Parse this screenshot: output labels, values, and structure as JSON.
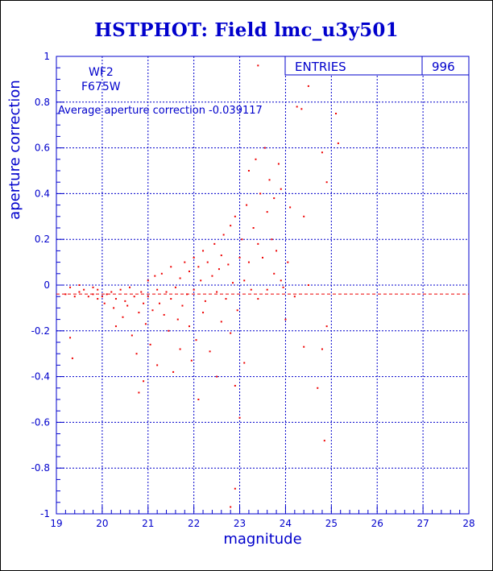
{
  "title": "HSTPHOT: Field lmc_u3y501",
  "chart_data": {
    "type": "scatter",
    "title": "HSTPHOT: Field lmc_u3y501",
    "xlabel": "magnitude",
    "ylabel": "aperture correction",
    "xlim": [
      19,
      28
    ],
    "ylim": [
      -1,
      1
    ],
    "x_ticks": [
      "19",
      "20",
      "21",
      "22",
      "23",
      "24",
      "25",
      "26",
      "27",
      "28"
    ],
    "y_ticks": [
      "-1",
      "-0.8",
      "-0.6",
      "-0.4",
      "-0.2",
      "0",
      "0.2",
      "0.4",
      "0.6",
      "0.8",
      "1"
    ],
    "grid": true,
    "annotations": {
      "chip": "WF2",
      "filter": "F675W",
      "average_text": "Average aperture correction -0.039117"
    },
    "stats_box": {
      "label": "ENTRIES",
      "value": "996"
    },
    "average_line": -0.039117,
    "colors": {
      "axes": "#0000cc",
      "points": "#ee0000",
      "average_line": "#ee0000"
    },
    "points": [
      [
        19.2,
        -0.04
      ],
      [
        19.3,
        -0.01
      ],
      [
        19.4,
        -0.05
      ],
      [
        19.5,
        -0.03
      ],
      [
        19.6,
        -0.02
      ],
      [
        19.7,
        -0.05
      ],
      [
        19.8,
        -0.04
      ],
      [
        19.9,
        -0.06
      ],
      [
        19.3,
        -0.23
      ],
      [
        19.35,
        -0.32
      ],
      [
        19.5,
        0.0
      ],
      [
        19.8,
        -0.01
      ],
      [
        19.9,
        -0.02
      ],
      [
        20.0,
        -0.05
      ],
      [
        20.05,
        -0.08
      ],
      [
        20.1,
        -0.04
      ],
      [
        20.2,
        -0.03
      ],
      [
        20.25,
        -0.1
      ],
      [
        20.3,
        -0.06
      ],
      [
        20.3,
        -0.18
      ],
      [
        20.4,
        -0.02
      ],
      [
        20.45,
        -0.14
      ],
      [
        20.5,
        -0.07
      ],
      [
        20.55,
        -0.09
      ],
      [
        20.6,
        -0.01
      ],
      [
        20.65,
        -0.22
      ],
      [
        20.7,
        -0.05
      ],
      [
        20.75,
        -0.3
      ],
      [
        20.8,
        -0.12
      ],
      [
        20.8,
        -0.47
      ],
      [
        20.85,
        -0.03
      ],
      [
        20.9,
        -0.08
      ],
      [
        20.9,
        -0.42
      ],
      [
        20.95,
        -0.17
      ],
      [
        21.0,
        0.02
      ],
      [
        21.0,
        -0.05
      ],
      [
        21.05,
        -0.26
      ],
      [
        21.1,
        -0.11
      ],
      [
        21.15,
        0.04
      ],
      [
        21.2,
        -0.02
      ],
      [
        21.2,
        -0.35
      ],
      [
        21.25,
        -0.08
      ],
      [
        21.3,
        0.05
      ],
      [
        21.35,
        -0.13
      ],
      [
        21.4,
        -0.03
      ],
      [
        21.45,
        -0.2
      ],
      [
        21.5,
        0.08
      ],
      [
        21.5,
        -0.06
      ],
      [
        21.55,
        -0.38
      ],
      [
        21.6,
        -0.01
      ],
      [
        21.65,
        -0.15
      ],
      [
        21.7,
        0.03
      ],
      [
        21.7,
        -0.28
      ],
      [
        21.75,
        -0.09
      ],
      [
        21.8,
        0.1
      ],
      [
        21.85,
        -0.04
      ],
      [
        21.9,
        0.06
      ],
      [
        21.9,
        -0.18
      ],
      [
        21.95,
        -0.33
      ],
      [
        22.0,
        0.12
      ],
      [
        22.0,
        -0.02
      ],
      [
        22.05,
        -0.24
      ],
      [
        22.1,
        0.08
      ],
      [
        22.1,
        -0.5
      ],
      [
        22.15,
        0.02
      ],
      [
        22.2,
        0.15
      ],
      [
        22.2,
        -0.12
      ],
      [
        22.25,
        -0.07
      ],
      [
        22.3,
        0.1
      ],
      [
        22.35,
        -0.29
      ],
      [
        22.4,
        0.04
      ],
      [
        22.45,
        0.18
      ],
      [
        22.5,
        -0.03
      ],
      [
        22.5,
        -0.4
      ],
      [
        22.55,
        0.07
      ],
      [
        22.6,
        0.13
      ],
      [
        22.6,
        -0.16
      ],
      [
        22.65,
        0.22
      ],
      [
        22.7,
        -0.06
      ],
      [
        22.75,
        0.09
      ],
      [
        22.8,
        -0.21
      ],
      [
        22.8,
        0.26
      ],
      [
        22.85,
        0.01
      ],
      [
        22.9,
        -0.44
      ],
      [
        22.9,
        0.3
      ],
      [
        22.95,
        -0.11
      ],
      [
        23.0,
        0.12
      ],
      [
        23.0,
        -0.58
      ],
      [
        23.05,
        0.2
      ],
      [
        23.1,
        0.02
      ],
      [
        23.1,
        -0.34
      ],
      [
        23.15,
        0.35
      ],
      [
        23.2,
        0.1
      ],
      [
        23.2,
        0.5
      ],
      [
        23.25,
        -0.02
      ],
      [
        23.3,
        0.25
      ],
      [
        23.35,
        0.55
      ],
      [
        23.4,
        0.18
      ],
      [
        23.4,
        0.96
      ],
      [
        23.45,
        0.4
      ],
      [
        23.5,
        0.12
      ],
      [
        23.55,
        0.6
      ],
      [
        23.6,
        0.32
      ],
      [
        23.65,
        0.46
      ],
      [
        23.7,
        0.2
      ],
      [
        23.75,
        0.38
      ],
      [
        23.8,
        0.15
      ],
      [
        23.85,
        0.53
      ],
      [
        23.9,
        0.42
      ],
      [
        24.0,
        -0.15
      ],
      [
        24.1,
        0.34
      ],
      [
        24.2,
        -0.05
      ],
      [
        24.25,
        0.78
      ],
      [
        24.35,
        0.77
      ],
      [
        24.4,
        0.3
      ],
      [
        24.4,
        -0.27
      ],
      [
        24.5,
        0.87
      ],
      [
        24.5,
        0.0
      ],
      [
        24.7,
        -0.45
      ],
      [
        24.8,
        0.58
      ],
      [
        24.8,
        -0.28
      ],
      [
        24.85,
        -0.68
      ],
      [
        24.9,
        0.45
      ],
      [
        24.9,
        -0.18
      ],
      [
        25.1,
        0.75
      ],
      [
        25.15,
        0.62
      ],
      [
        22.9,
        -0.89
      ],
      [
        22.8,
        -0.97
      ],
      [
        23.4,
        -0.06
      ],
      [
        23.6,
        -0.02
      ],
      [
        23.75,
        0.05
      ],
      [
        23.9,
        0.02
      ],
      [
        23.95,
        -0.01
      ],
      [
        24.05,
        0.1
      ]
    ]
  }
}
